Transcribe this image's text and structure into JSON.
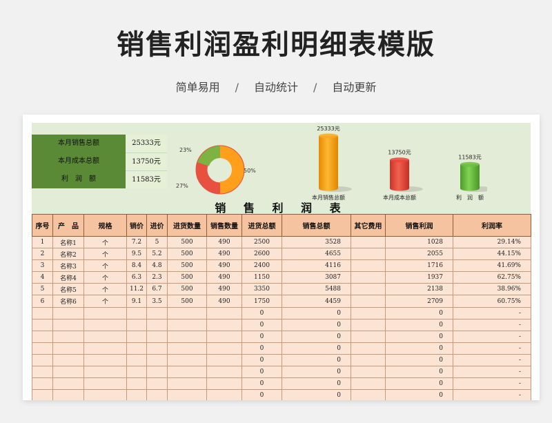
{
  "header": {
    "title": "销售利润盈利明细表模版",
    "tags": [
      "简单易用",
      "自动统计",
      "自动更新"
    ],
    "separator": "/"
  },
  "summary": {
    "rows": [
      {
        "label": "本月销售总额",
        "value": "25333元"
      },
      {
        "label": "本月成本总额",
        "value": "13750元"
      },
      {
        "label": "利　润　额",
        "value": "11583元"
      }
    ]
  },
  "donut": {
    "labels": [
      "23%",
      "50%",
      "27%"
    ],
    "colors": [
      "#7cb342",
      "#ff9f1c",
      "#e8513f"
    ]
  },
  "bars": [
    {
      "value_label": "25333元",
      "name": "本月销售总额",
      "value": 25333,
      "color": "#ffa81a"
    },
    {
      "value_label": "13750元",
      "name": "本月成本总额",
      "value": 13750,
      "color": "#e8463a"
    },
    {
      "value_label": "11583元",
      "name": "利　润　额",
      "value": 11583,
      "color": "#6cbf3f"
    }
  ],
  "sheet_title": "销 售 利 润 表",
  "table": {
    "headers": [
      "序号",
      "产　品",
      "规格",
      "销价",
      "进价",
      "进货数量",
      "销售数量",
      "进货总额",
      "销售总额",
      "其它费用",
      "销售利润",
      "利润率"
    ],
    "rows": [
      [
        "1",
        "名称1",
        "个",
        "7.2",
        "5",
        "500",
        "490",
        "2500",
        "3528",
        "",
        "1028",
        "29.14%"
      ],
      [
        "2",
        "名称2",
        "个",
        "9.5",
        "5.2",
        "500",
        "490",
        "2600",
        "4655",
        "",
        "2055",
        "44.15%"
      ],
      [
        "3",
        "名称3",
        "个",
        "8.4",
        "4.8",
        "500",
        "490",
        "2400",
        "4116",
        "",
        "1716",
        "41.69%"
      ],
      [
        "4",
        "名称4",
        "个",
        "6.3",
        "2.3",
        "500",
        "490",
        "1150",
        "3087",
        "",
        "1937",
        "62.75%"
      ],
      [
        "5",
        "名称5",
        "个",
        "11.2",
        "6.7",
        "500",
        "490",
        "3350",
        "5488",
        "",
        "2138",
        "38.96%"
      ],
      [
        "6",
        "名称6",
        "个",
        "9.1",
        "3.5",
        "500",
        "490",
        "1750",
        "4459",
        "",
        "2709",
        "60.75%"
      ],
      [
        "",
        "",
        "",
        "",
        "",
        "",
        "",
        "0",
        "0",
        "",
        "0",
        "-"
      ],
      [
        "",
        "",
        "",
        "",
        "",
        "",
        "",
        "0",
        "0",
        "",
        "0",
        "-"
      ],
      [
        "",
        "",
        "",
        "",
        "",
        "",
        "",
        "0",
        "0",
        "",
        "0",
        "-"
      ],
      [
        "",
        "",
        "",
        "",
        "",
        "",
        "",
        "0",
        "0",
        "",
        "0",
        "-"
      ],
      [
        "",
        "",
        "",
        "",
        "",
        "",
        "",
        "0",
        "0",
        "",
        "0",
        "-"
      ],
      [
        "",
        "",
        "",
        "",
        "",
        "",
        "",
        "0",
        "0",
        "",
        "0",
        "-"
      ],
      [
        "",
        "",
        "",
        "",
        "",
        "",
        "",
        "0",
        "0",
        "",
        "0",
        "-"
      ],
      [
        "",
        "",
        "",
        "",
        "",
        "",
        "",
        "0",
        "0",
        "",
        "0",
        "-"
      ]
    ]
  }
}
